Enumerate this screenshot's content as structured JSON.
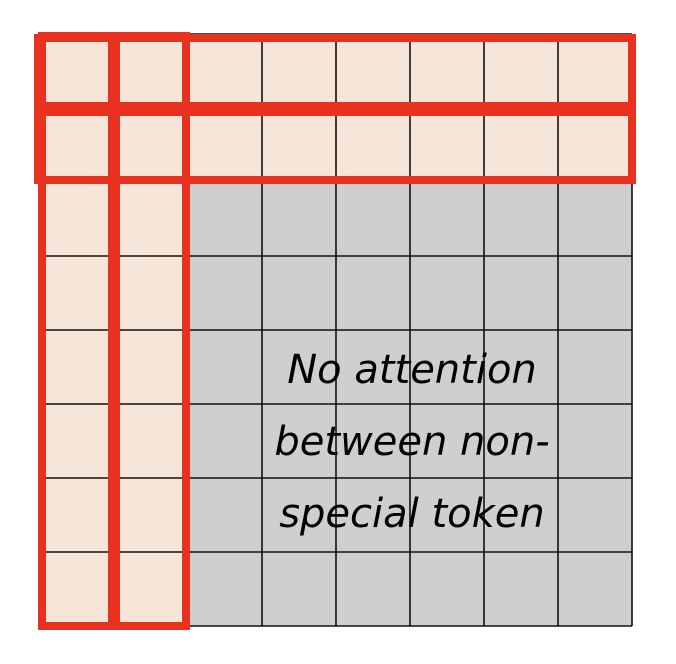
{
  "diagram": {
    "grid_size": 8,
    "special_tokens": 2,
    "caption_lines": [
      "No attention",
      "between non-",
      "special token"
    ],
    "colors": {
      "special_cell": "#f6e6da",
      "plain_cell": "#d0cfd0",
      "grid_line": "#111111",
      "highlight": "#e8321f"
    }
  }
}
